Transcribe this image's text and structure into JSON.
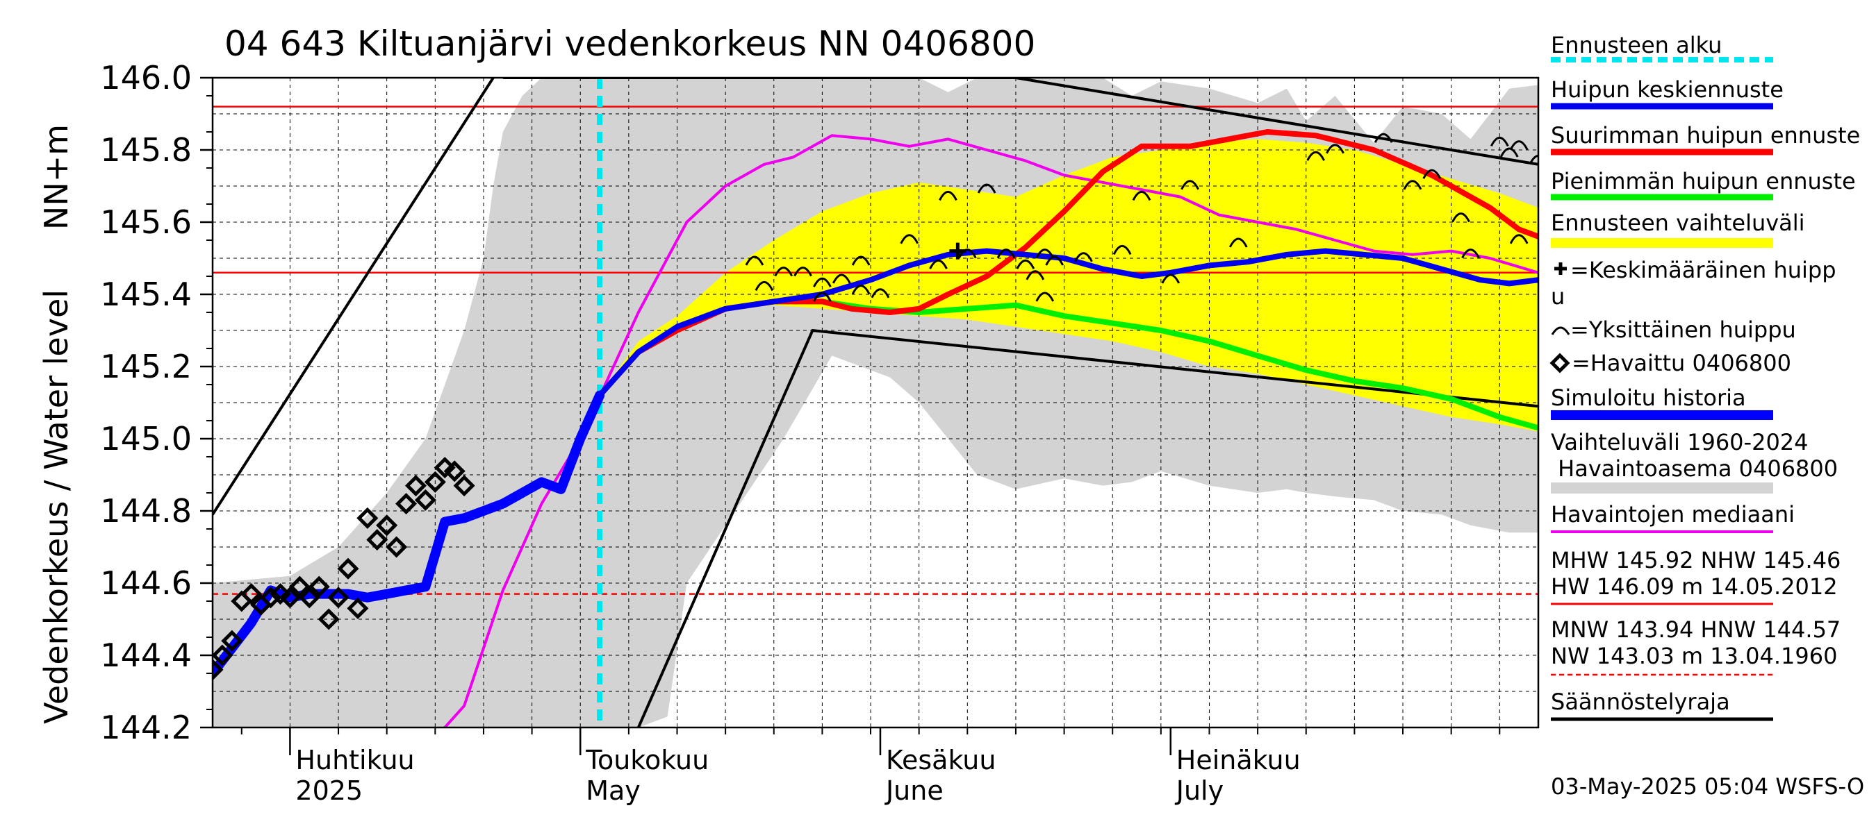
{
  "chart_data": {
    "type": "line",
    "title": "04 643 Kiltuanjärvi vedenkorkeus NN 0406800",
    "ylabel_main": "Vedenkorkeus / Water level",
    "ylabel_unit": "NN+m",
    "ylim": [
      144.2,
      146.0
    ],
    "yticks": [
      "146.0",
      "145.8",
      "145.6",
      "145.4",
      "145.2",
      "145.0",
      "144.8",
      "144.6",
      "144.4",
      "144.2"
    ],
    "xlim_day": [
      -8,
      129
    ],
    "month_ticks": [
      {
        "day": 0,
        "fi": "Huhtikuu",
        "en": "2025"
      },
      {
        "day": 30,
        "fi": "Toukokuu",
        "en": "May"
      },
      {
        "day": 61,
        "fi": "Kesäkuu",
        "en": "June"
      },
      {
        "day": 91,
        "fi": "Heinäkuu",
        "en": "July"
      }
    ],
    "day_unit": "days since 1 April 2025",
    "forecast_start_day": 32,
    "reference_lines": {
      "MHW": 145.92,
      "NHW": 145.46,
      "HNW": 144.57
    },
    "regulation_limits": [
      [
        [
          -8,
          144.79
        ],
        [
          21,
          146.0
        ]
      ],
      [
        [
          22,
          146.0
        ],
        [
          75,
          146.0
        ],
        [
          129,
          145.76
        ]
      ],
      [
        [
          36,
          144.2
        ],
        [
          54,
          145.3
        ],
        [
          129,
          145.09
        ]
      ]
    ],
    "history_range": [
      [
        -8,
        144.6,
        144.2
      ],
      [
        0,
        144.62,
        144.2
      ],
      [
        5,
        144.7,
        144.2
      ],
      [
        10,
        144.85,
        144.2
      ],
      [
        14,
        145.0,
        144.2
      ],
      [
        18,
        145.3,
        144.2
      ],
      [
        20,
        145.5,
        144.2
      ],
      [
        21,
        145.7,
        144.2
      ],
      [
        22,
        145.85,
        144.2
      ],
      [
        24,
        145.95,
        144.2
      ],
      [
        26,
        146.0,
        144.2
      ],
      [
        31,
        146.0,
        144.2
      ],
      [
        36,
        146.0,
        144.2
      ],
      [
        39,
        146.0,
        144.23
      ],
      [
        41,
        146.0,
        144.6
      ],
      [
        46,
        146.0,
        144.8
      ],
      [
        51,
        146.0,
        145.0
      ],
      [
        56,
        146.0,
        145.23
      ],
      [
        59,
        146.0,
        145.2
      ],
      [
        62,
        146.0,
        145.17
      ],
      [
        65,
        146.0,
        145.1
      ],
      [
        68,
        145.96,
        145.0
      ],
      [
        71,
        146.0,
        144.9
      ],
      [
        75,
        146.0,
        144.86
      ],
      [
        80,
        146.0,
        144.89
      ],
      [
        84,
        146.0,
        144.87
      ],
      [
        87,
        145.95,
        144.88
      ],
      [
        90,
        145.99,
        144.91
      ],
      [
        95,
        145.97,
        144.87
      ],
      [
        100,
        145.93,
        144.85
      ],
      [
        103,
        145.97,
        144.86
      ],
      [
        105,
        145.88,
        144.85
      ],
      [
        108,
        145.95,
        144.84
      ],
      [
        112,
        145.82,
        144.83
      ],
      [
        115,
        145.92,
        144.8
      ],
      [
        119,
        145.9,
        144.79
      ],
      [
        122,
        145.83,
        144.76
      ],
      [
        126,
        145.97,
        144.74
      ],
      [
        129,
        145.98,
        144.74
      ]
    ],
    "forecast_range": [
      [
        32,
        145.12,
        145.12
      ],
      [
        36,
        145.27,
        145.25
      ],
      [
        40,
        145.34,
        145.32
      ],
      [
        45,
        145.46,
        145.36
      ],
      [
        50,
        145.55,
        145.37
      ],
      [
        55,
        145.63,
        145.36
      ],
      [
        60,
        145.68,
        145.35
      ],
      [
        65,
        145.71,
        145.34
      ],
      [
        70,
        145.69,
        145.33
      ],
      [
        75,
        145.67,
        145.31
      ],
      [
        80,
        145.73,
        145.29
      ],
      [
        85,
        145.78,
        145.27
      ],
      [
        90,
        145.8,
        145.24
      ],
      [
        95,
        145.82,
        145.2
      ],
      [
        100,
        145.83,
        145.18
      ],
      [
        105,
        145.82,
        145.15
      ],
      [
        110,
        145.8,
        145.12
      ],
      [
        115,
        145.76,
        145.09
      ],
      [
        120,
        145.72,
        145.06
      ],
      [
        125,
        145.68,
        145.04
      ],
      [
        129,
        145.64,
        145.02
      ]
    ],
    "series": [
      {
        "name": "Havaintojen mediaani",
        "color": "#ee00ee",
        "width": 4,
        "points": [
          [
            16,
            144.2
          ],
          [
            18,
            144.26
          ],
          [
            22,
            144.58
          ],
          [
            26,
            144.82
          ],
          [
            30,
            145.0
          ],
          [
            36,
            145.35
          ],
          [
            41,
            145.6
          ],
          [
            45,
            145.7
          ],
          [
            49,
            145.76
          ],
          [
            52,
            145.78
          ],
          [
            56,
            145.84
          ],
          [
            60,
            145.83
          ],
          [
            64,
            145.81
          ],
          [
            68,
            145.83
          ],
          [
            72,
            145.8
          ],
          [
            76,
            145.77
          ],
          [
            80,
            145.73
          ],
          [
            84,
            145.71
          ],
          [
            88,
            145.69
          ],
          [
            92,
            145.67
          ],
          [
            96,
            145.62
          ],
          [
            100,
            145.6
          ],
          [
            104,
            145.58
          ],
          [
            108,
            145.55
          ],
          [
            112,
            145.52
          ],
          [
            116,
            145.51
          ],
          [
            120,
            145.52
          ],
          [
            124,
            145.5
          ],
          [
            129,
            145.46
          ]
        ]
      },
      {
        "name": "Pienimmän huipun ennuste",
        "color": "#00ee00",
        "width": 8,
        "points": [
          [
            32,
            145.12
          ],
          [
            36,
            145.24
          ],
          [
            40,
            145.31
          ],
          [
            45,
            145.36
          ],
          [
            50,
            145.38
          ],
          [
            55,
            145.38
          ],
          [
            60,
            145.36
          ],
          [
            65,
            145.35
          ],
          [
            70,
            145.36
          ],
          [
            75,
            145.37
          ],
          [
            80,
            145.34
          ],
          [
            85,
            145.32
          ],
          [
            90,
            145.3
          ],
          [
            95,
            145.27
          ],
          [
            100,
            145.23
          ],
          [
            105,
            145.19
          ],
          [
            110,
            145.16
          ],
          [
            115,
            145.14
          ],
          [
            120,
            145.11
          ],
          [
            125,
            145.06
          ],
          [
            129,
            145.03
          ]
        ]
      },
      {
        "name": "Suurimman huipun ennuste",
        "color": "#ff0000",
        "width": 8,
        "points": [
          [
            32,
            145.12
          ],
          [
            36,
            145.24
          ],
          [
            40,
            145.3
          ],
          [
            45,
            145.36
          ],
          [
            50,
            145.38
          ],
          [
            55,
            145.38
          ],
          [
            58,
            145.36
          ],
          [
            62,
            145.35
          ],
          [
            65,
            145.36
          ],
          [
            68,
            145.4
          ],
          [
            72,
            145.45
          ],
          [
            76,
            145.53
          ],
          [
            80,
            145.63
          ],
          [
            84,
            145.74
          ],
          [
            88,
            145.81
          ],
          [
            93,
            145.81
          ],
          [
            97,
            145.83
          ],
          [
            101,
            145.85
          ],
          [
            106,
            145.84
          ],
          [
            112,
            145.8
          ],
          [
            118,
            145.73
          ],
          [
            124,
            145.64
          ],
          [
            127,
            145.58
          ],
          [
            129,
            145.56
          ]
        ]
      },
      {
        "name": "Huipun keskiennuste",
        "color": "#0000ee",
        "width": 8,
        "points": [
          [
            32,
            145.12
          ],
          [
            36,
            145.24
          ],
          [
            40,
            145.31
          ],
          [
            45,
            145.36
          ],
          [
            50,
            145.38
          ],
          [
            55,
            145.4
          ],
          [
            60,
            145.44
          ],
          [
            64,
            145.48
          ],
          [
            68,
            145.51
          ],
          [
            72,
            145.52
          ],
          [
            76,
            145.51
          ],
          [
            80,
            145.5
          ],
          [
            84,
            145.47
          ],
          [
            88,
            145.45
          ],
          [
            91,
            145.46
          ],
          [
            95,
            145.48
          ],
          [
            99,
            145.49
          ],
          [
            103,
            145.51
          ],
          [
            107,
            145.52
          ],
          [
            111,
            145.51
          ],
          [
            115,
            145.5
          ],
          [
            119,
            145.47
          ],
          [
            123,
            145.44
          ],
          [
            126,
            145.43
          ],
          [
            129,
            145.44
          ]
        ]
      },
      {
        "name": "Simuloitu historia",
        "color": "#0000ff",
        "width": 14,
        "points": [
          [
            -8,
            144.35
          ],
          [
            -6,
            144.42
          ],
          [
            -4,
            144.49
          ],
          [
            -2,
            144.58
          ],
          [
            0,
            144.56
          ],
          [
            2,
            144.57
          ],
          [
            4,
            144.57
          ],
          [
            6,
            144.57
          ],
          [
            8,
            144.56
          ],
          [
            10,
            144.57
          ],
          [
            12,
            144.58
          ],
          [
            14,
            144.59
          ],
          [
            16,
            144.77
          ],
          [
            18,
            144.78
          ],
          [
            20,
            144.8
          ],
          [
            22,
            144.82
          ],
          [
            24,
            144.85
          ],
          [
            26,
            144.88
          ],
          [
            28,
            144.86
          ],
          [
            30,
            145.0
          ],
          [
            32,
            145.12
          ]
        ]
      }
    ],
    "observations": [
      [
        -8,
        144.36
      ],
      [
        -7,
        144.4
      ],
      [
        -6,
        144.44
      ],
      [
        -5,
        144.55
      ],
      [
        -4,
        144.57
      ],
      [
        -3,
        144.54
      ],
      [
        -2,
        144.56
      ],
      [
        -1,
        144.57
      ],
      [
        0,
        144.56
      ],
      [
        1,
        144.59
      ],
      [
        2,
        144.56
      ],
      [
        3,
        144.59
      ],
      [
        4,
        144.5
      ],
      [
        5,
        144.56
      ],
      [
        6,
        144.64
      ],
      [
        7,
        144.53
      ],
      [
        8,
        144.78
      ],
      [
        9,
        144.72
      ],
      [
        10,
        144.76
      ],
      [
        11,
        144.7
      ],
      [
        12,
        144.82
      ],
      [
        13,
        144.87
      ],
      [
        14,
        144.83
      ],
      [
        15,
        144.88
      ],
      [
        16,
        144.92
      ],
      [
        17,
        144.91
      ],
      [
        18,
        144.87
      ]
    ],
    "mean_peak": [
      69,
      145.52
    ],
    "single_peaks": [
      [
        48,
        145.5
      ],
      [
        51,
        145.47
      ],
      [
        49,
        145.43
      ],
      [
        53,
        145.47
      ],
      [
        55,
        145.44
      ],
      [
        57,
        145.45
      ],
      [
        59,
        145.5
      ],
      [
        55,
        145.4
      ],
      [
        59,
        145.42
      ],
      [
        61,
        145.41
      ],
      [
        64,
        145.56
      ],
      [
        67,
        145.49
      ],
      [
        70,
        145.52
      ],
      [
        68,
        145.68
      ],
      [
        72,
        145.7
      ],
      [
        74,
        145.52
      ],
      [
        76,
        145.49
      ],
      [
        77,
        145.46
      ],
      [
        78,
        145.52
      ],
      [
        79,
        145.5
      ],
      [
        78,
        145.4
      ],
      [
        82,
        145.51
      ],
      [
        86,
        145.53
      ],
      [
        88,
        145.68
      ],
      [
        91,
        145.45
      ],
      [
        93,
        145.71
      ],
      [
        98,
        145.55
      ],
      [
        106,
        145.79
      ],
      [
        108,
        145.81
      ],
      [
        113,
        145.84
      ],
      [
        116,
        145.71
      ],
      [
        118,
        145.74
      ],
      [
        121,
        145.62
      ],
      [
        122,
        145.52
      ],
      [
        125,
        145.83
      ],
      [
        126,
        145.8
      ],
      [
        127,
        145.82
      ],
      [
        129,
        145.78
      ],
      [
        127,
        145.56
      ],
      [
        133,
        145.55
      ],
      [
        134,
        145.53
      ],
      [
        137,
        145.67
      ],
      [
        141,
        145.45
      ],
      [
        143,
        145.6
      ]
    ],
    "legend": {
      "items": [
        {
          "label": "Ennusteen alku",
          "color": "#00e5ee",
          "style": "dash"
        },
        {
          "label": "Huipun keskiennuste",
          "color": "#0000ee",
          "style": "line"
        },
        {
          "label": "Suurimman huipun ennuste",
          "color": "#ff0000",
          "style": "line"
        },
        {
          "label": "Pienimmän huipun ennuste",
          "color": "#00ee00",
          "style": "line"
        },
        {
          "label": "Ennusteen vaihteluväli",
          "color": "#ffff00",
          "style": "line"
        }
      ],
      "mean_peak_label": "=Keskimääräinen huipp",
      "mean_peak_label_wrap": "u",
      "single_peak_label": "=Yksittäinen huippu",
      "observed_label": "=Havaittu 0406800",
      "sim_label": "Simuloitu historia",
      "range_label_1": "Vaihteluväli 1960-2024",
      "range_label_2": " Havaintoasema 0406800",
      "median_label": "Havaintojen mediaani",
      "hw_line1": "MHW 145.92 NHW 145.46",
      "hw_line2": "HW 146.09 m 14.05.2012",
      "nw_line1": "MNW 143.94 HNW 144.57",
      "nw_line2": "NW 143.03 m 13.04.1960",
      "reg_label": "Säännöstelyraja"
    },
    "footer": "03-May-2025 05:04 WSFS-O",
    "colors": {
      "range_gray": "#d3d3d3",
      "forecast_yellow": "#ffff00",
      "ref_red": "#ff0000",
      "reg_black": "#000000"
    }
  }
}
